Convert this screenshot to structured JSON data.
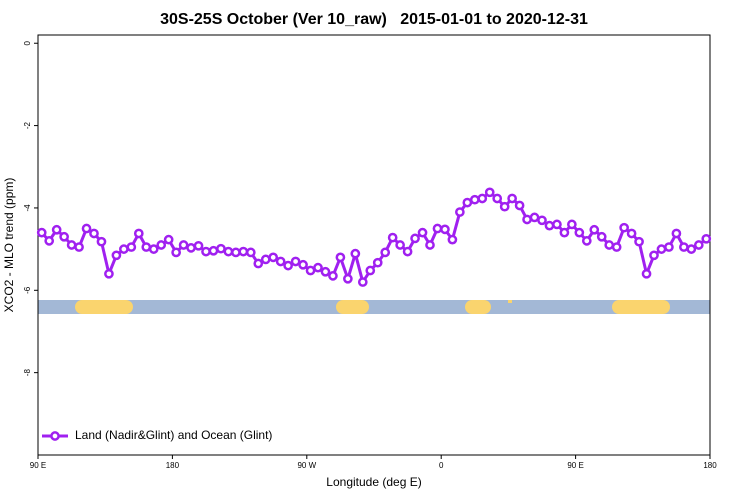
{
  "chart_data": {
    "type": "line",
    "title": "30S-25S October (Ver 10_raw)   2015-01-01 to 2020-12-31",
    "xlabel": "Longitude (deg E)",
    "ylabel": "XCO2 - MLO trend (ppm)",
    "xlim": [
      90,
      540
    ],
    "ylim": [
      -10,
      0.2
    ],
    "xticks": [
      {
        "value": 90,
        "label": "90 E"
      },
      180,
      {
        "value": 270,
        "label": "90 W"
      },
      {
        "value": 360,
        "label": "0"
      },
      {
        "value": 450,
        "label": "90 E"
      },
      {
        "value": 540,
        "label": "180"
      }
    ],
    "yticks": [
      0,
      -2,
      -4,
      -6,
      -8
    ],
    "legend": "bottom-left",
    "x": [
      92.5,
      97.5,
      102.5,
      107.5,
      112.5,
      117.5,
      122.5,
      127.5,
      132.5,
      137.5,
      142.5,
      147.5,
      152.5,
      157.5,
      162.5,
      167.5,
      172.5,
      177.5,
      182.5,
      187.5,
      192.5,
      197.5,
      202.5,
      207.5,
      212.5,
      217.5,
      222.5,
      227.5,
      232.5,
      237.5,
      242.5,
      247.5,
      252.5,
      257.5,
      262.5,
      267.5,
      272.5,
      277.5,
      282.5,
      287.5,
      292.5,
      297.5,
      302.5,
      307.5,
      312.5,
      317.5,
      322.5,
      327.5,
      332.5,
      337.5,
      342.5,
      347.5,
      352.5,
      357.5,
      362.5,
      367.5,
      372.5,
      377.5,
      382.5,
      387.5,
      392.5,
      397.5,
      402.5,
      407.5,
      412.5,
      417.5,
      422.5,
      427.5,
      432.5,
      437.5,
      442.5,
      447.5,
      452.5,
      457.5,
      462.5,
      467.5,
      472.5,
      477.5,
      482.5,
      487.5,
      492.5,
      497.5,
      502.5,
      507.5,
      512.5,
      517.5,
      522.5,
      527.5,
      532.5,
      537.5
    ],
    "series": [
      {
        "name": "Land (Nadir&Glint) and Ocean (Glint)",
        "color": "#a020f0",
        "values": [
          -4.6,
          -4.8,
          -4.53,
          -4.7,
          -4.9,
          -4.95,
          -4.5,
          -4.62,
          -4.82,
          -5.6,
          -5.15,
          -5.0,
          -4.95,
          -4.62,
          -4.95,
          -5.0,
          -4.9,
          -4.77,
          -5.08,
          -4.9,
          -4.97,
          -4.92,
          -5.06,
          -5.04,
          -4.99,
          -5.06,
          -5.08,
          -5.06,
          -5.08,
          -5.35,
          -5.25,
          -5.2,
          -5.3,
          -5.4,
          -5.3,
          -5.38,
          -5.52,
          -5.45,
          -5.55,
          -5.65,
          -5.2,
          -5.72,
          -5.11,
          -5.8,
          -5.52,
          -5.33,
          -5.08,
          -4.72,
          -4.9,
          -5.06,
          -4.74,
          -4.6,
          -4.9,
          -4.5,
          -4.52,
          -4.77,
          -4.1,
          -3.87,
          -3.8,
          -3.77,
          -3.62,
          -3.77,
          -3.97,
          -3.77,
          -3.94,
          -4.28,
          -4.23,
          -4.3,
          -4.43,
          -4.4,
          -4.6,
          -4.4,
          -4.6,
          -4.8,
          -4.53,
          -4.7,
          -4.9,
          -4.95,
          -4.48,
          -4.62,
          -4.82,
          -5.6,
          -5.15,
          -5.0,
          -4.95,
          -4.62,
          -4.95,
          -5.0,
          -4.9,
          -4.75
        ]
      }
    ]
  }
}
